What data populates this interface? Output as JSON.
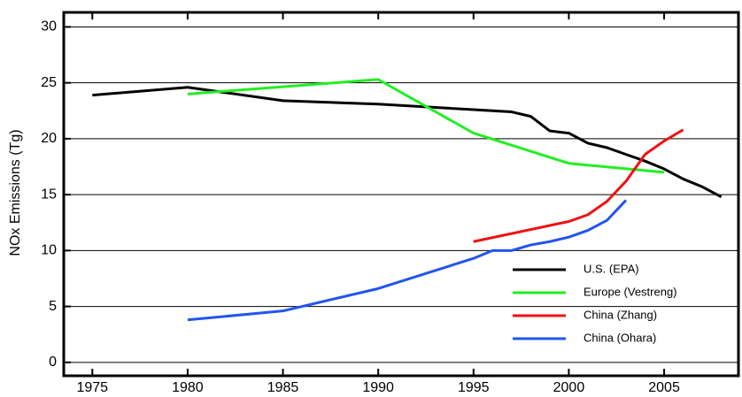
{
  "chart_data": {
    "type": "line",
    "y_label": "NOx Emissions (Tg)",
    "xlim": [
      1973.5,
      2008.9
    ],
    "ylim": [
      -1.2,
      31.3
    ],
    "xticks": [
      1975,
      1980,
      1985,
      1990,
      1995,
      2000,
      2005
    ],
    "yticks": [
      0,
      5,
      10,
      15,
      20,
      25,
      30
    ],
    "grid": "y",
    "legend": "lower right",
    "series": [
      {
        "name": "U.S. (EPA)",
        "color": "#000000",
        "x": [
          1975,
          1980,
          1985,
          1990,
          1995,
          1997,
          1998,
          1999,
          2000,
          2001,
          2002,
          2003,
          2004,
          2005,
          2006,
          2007,
          2008
        ],
        "values": [
          23.9,
          24.6,
          23.4,
          23.1,
          22.6,
          22.4,
          22.0,
          20.7,
          20.5,
          19.6,
          19.2,
          18.6,
          18.0,
          17.3,
          16.4,
          15.7,
          14.8
        ]
      },
      {
        "name": "Europe (Vestreng)",
        "color": "#22ee22",
        "x": [
          1980,
          1990,
          1995,
          2000,
          2005
        ],
        "values": [
          24.0,
          25.3,
          20.5,
          17.8,
          17.0
        ]
      },
      {
        "name": "China (Zhang)",
        "color": "#ee1111",
        "x": [
          1995,
          2000,
          2001,
          2002,
          2003,
          2004,
          2005,
          2006
        ],
        "values": [
          10.8,
          12.6,
          13.2,
          14.4,
          16.2,
          18.6,
          19.8,
          20.8
        ]
      },
      {
        "name": "China (Ohara)",
        "color": "#2255ee",
        "x": [
          1980,
          1985,
          1990,
          1995,
          1996,
          1997,
          1998,
          1999,
          2000,
          2001,
          2002,
          2003
        ],
        "values": [
          3.8,
          4.6,
          6.6,
          9.3,
          10.0,
          10.0,
          10.5,
          10.8,
          11.2,
          11.8,
          12.7,
          14.5
        ]
      }
    ]
  }
}
